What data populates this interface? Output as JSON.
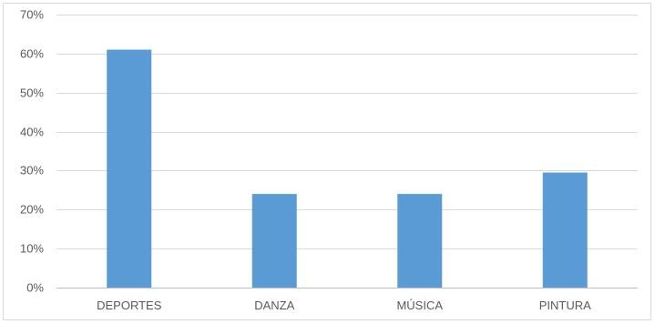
{
  "chart_data": {
    "type": "bar",
    "title": "",
    "xlabel": "",
    "ylabel": "",
    "categories": [
      "DEPORTES",
      "DANZA",
      "MÚSICA",
      "PINTURA"
    ],
    "values": [
      0.61,
      0.24,
      0.24,
      0.295
    ],
    "ylim": [
      0,
      0.7
    ],
    "yticks": [
      0,
      0.1,
      0.2,
      0.3,
      0.4,
      0.5,
      0.6,
      0.7
    ],
    "ytick_labels": [
      "0%",
      "10%",
      "20%",
      "30%",
      "40%",
      "50%",
      "60%",
      "70%"
    ],
    "grid": true,
    "legend": "none",
    "bar_color": "#5b9bd5"
  }
}
